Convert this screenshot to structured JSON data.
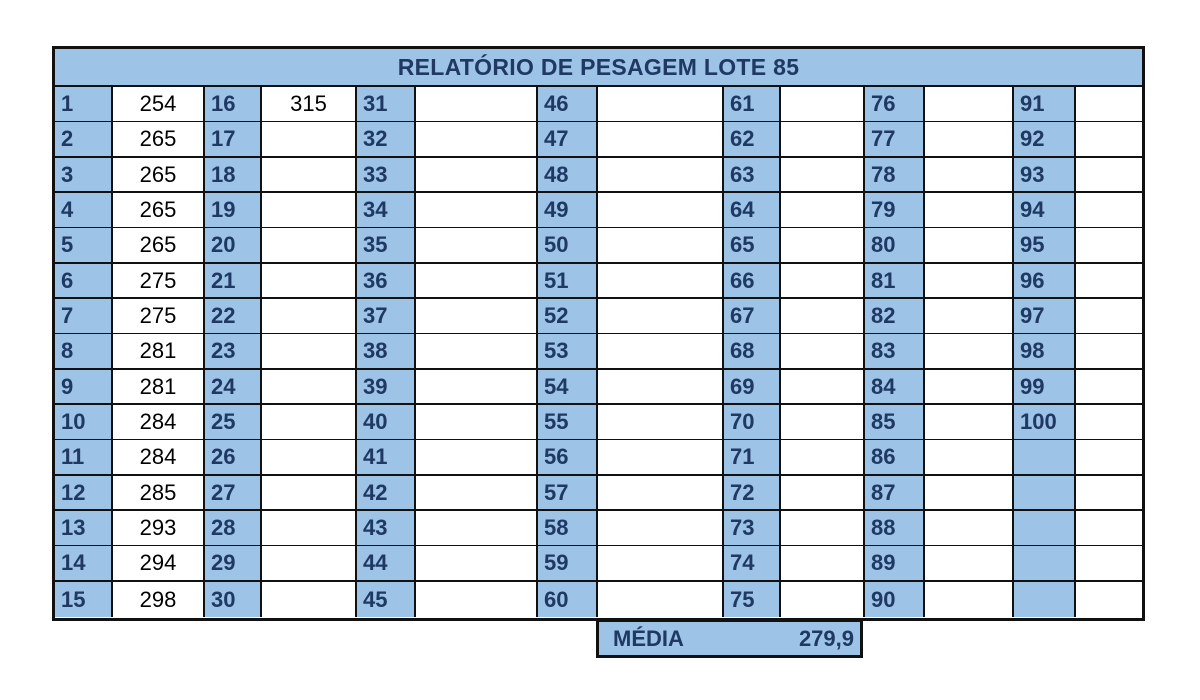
{
  "title": "RELATÓRIO DE PESAGEM LOTE 85",
  "columns": [
    {
      "numbers": [
        "1",
        "2",
        "3",
        "4",
        "5",
        "6",
        "7",
        "8",
        "9",
        "10",
        "11",
        "12",
        "13",
        "14",
        "15"
      ],
      "values": [
        "254",
        "265",
        "265",
        "265",
        "265",
        "275",
        "275",
        "281",
        "281",
        "284",
        "284",
        "285",
        "293",
        "294",
        "298"
      ]
    },
    {
      "numbers": [
        "16",
        "17",
        "18",
        "19",
        "20",
        "21",
        "22",
        "23",
        "24",
        "25",
        "26",
        "27",
        "28",
        "29",
        "30"
      ],
      "values": [
        "315",
        "",
        "",
        "",
        "",
        "",
        "",
        "",
        "",
        "",
        "",
        "",
        "",
        "",
        ""
      ]
    },
    {
      "numbers": [
        "31",
        "32",
        "33",
        "34",
        "35",
        "36",
        "37",
        "38",
        "39",
        "40",
        "41",
        "42",
        "43",
        "44",
        "45"
      ],
      "values": [
        "",
        "",
        "",
        "",
        "",
        "",
        "",
        "",
        "",
        "",
        "",
        "",
        "",
        "",
        ""
      ]
    },
    {
      "numbers": [
        "46",
        "47",
        "48",
        "49",
        "50",
        "51",
        "52",
        "53",
        "54",
        "55",
        "56",
        "57",
        "58",
        "59",
        "60"
      ],
      "values": [
        "",
        "",
        "",
        "",
        "",
        "",
        "",
        "",
        "",
        "",
        "",
        "",
        "",
        "",
        ""
      ]
    },
    {
      "numbers": [
        "61",
        "62",
        "63",
        "64",
        "65",
        "66",
        "67",
        "68",
        "69",
        "70",
        "71",
        "72",
        "73",
        "74",
        "75"
      ],
      "values": [
        "",
        "",
        "",
        "",
        "",
        "",
        "",
        "",
        "",
        "",
        "",
        "",
        "",
        "",
        ""
      ]
    },
    {
      "numbers": [
        "76",
        "77",
        "78",
        "79",
        "80",
        "81",
        "82",
        "83",
        "84",
        "85",
        "86",
        "87",
        "88",
        "89",
        "90"
      ],
      "values": [
        "",
        "",
        "",
        "",
        "",
        "",
        "",
        "",
        "",
        "",
        "",
        "",
        "",
        "",
        ""
      ]
    },
    {
      "numbers": [
        "91",
        "92",
        "93",
        "94",
        "95",
        "96",
        "97",
        "98",
        "99",
        "100",
        "",
        "",
        "",
        "",
        ""
      ],
      "values": [
        "",
        "",
        "",
        "",
        "",
        "",
        "",
        "",
        "",
        "",
        "",
        "",
        "",
        "",
        ""
      ]
    }
  ],
  "media": {
    "label": "MÉDIA",
    "value": "279,9"
  },
  "colors": {
    "header_fill": "#9dc3e6",
    "header_text": "#1f3864",
    "border": "#111111"
  }
}
